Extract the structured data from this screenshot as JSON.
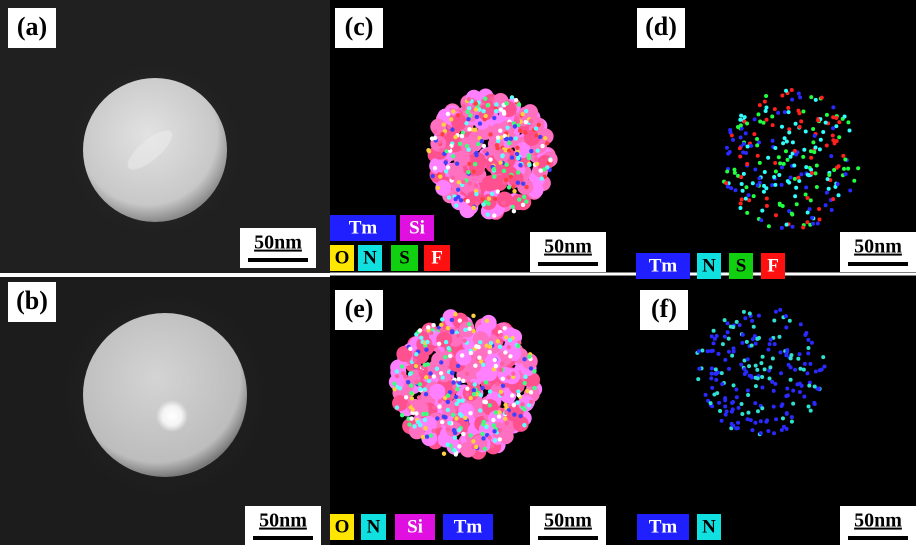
{
  "panels": [
    {
      "label": "(a)",
      "scale_bar": "50nm"
    },
    {
      "label": "(b)",
      "scale_bar": "50nm"
    },
    {
      "label": "(c)",
      "scale_bar": "50nm",
      "legend": [
        "Tm",
        "Si",
        "O",
        "N",
        "S",
        "F"
      ]
    },
    {
      "label": "(d)",
      "scale_bar": "50nm",
      "legend": [
        "Tm",
        "N",
        "S",
        "F"
      ]
    },
    {
      "label": "(e)",
      "scale_bar": "50nm",
      "legend": [
        "O",
        "N",
        "Si",
        "Tm"
      ]
    },
    {
      "label": "(f)",
      "scale_bar": "50nm",
      "legend": [
        "Tm",
        "N"
      ]
    }
  ]
}
